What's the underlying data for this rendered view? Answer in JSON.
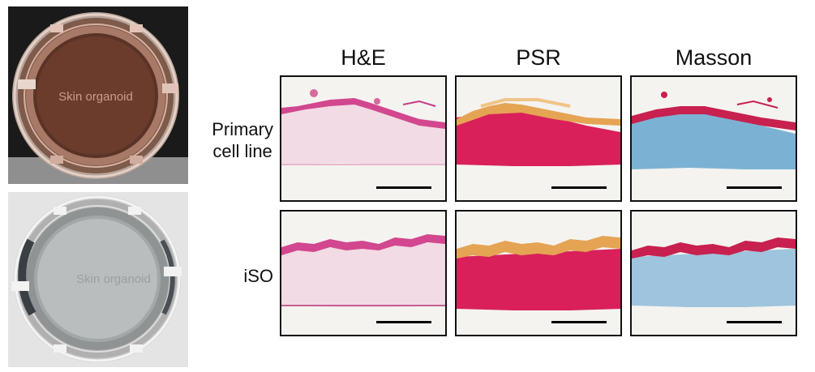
{
  "photos": [
    {
      "id": "primary",
      "dish_text": "Skin organoid",
      "tint": "#c98c6e"
    },
    {
      "id": "iso",
      "dish_text": "Skin organoid",
      "tint": "#c9ccc9"
    }
  ],
  "columns": [
    "H&E",
    "PSR",
    "Masson"
  ],
  "rows": [
    {
      "label_line1": "Primary",
      "label_line2": "cell line"
    },
    {
      "label_line1": "iSO",
      "label_line2": ""
    }
  ],
  "colors": {
    "he_epidermis": "#d2478f",
    "he_dermis": "#f2dbe4",
    "psr_epidermis": "#e5a453",
    "psr_dermis": "#d9205b",
    "masson_epidermis": "#c8204f",
    "masson_dermis": "#7bb2d3",
    "background": "#f4f3f0"
  }
}
